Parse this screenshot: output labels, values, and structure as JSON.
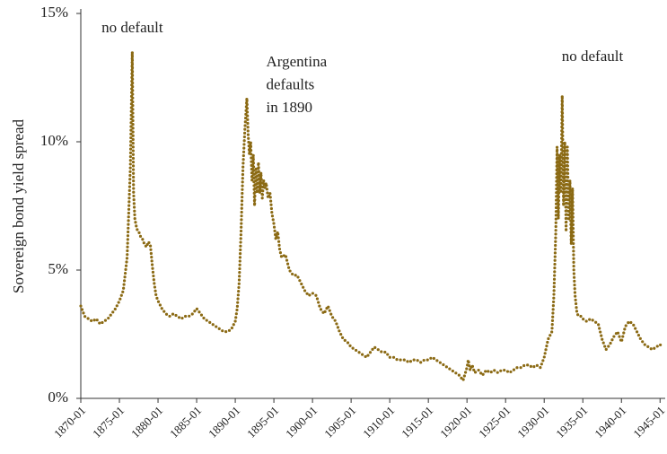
{
  "chart_data": {
    "type": "line",
    "y_label": "Sovereign bond yield spread",
    "annotations": [
      {
        "lines": [
          "no default"
        ],
        "x": "1876-09"
      },
      {
        "lines": [
          "Argentina",
          "defaults",
          "in 1890"
        ],
        "x": "1894-01"
      },
      {
        "lines": [
          "no default"
        ],
        "x": "1936-04"
      }
    ],
    "color": "#8b6a14",
    "ylim": [
      0,
      15
    ],
    "yticks": [
      {
        "value": 0,
        "label": "0%"
      },
      {
        "value": 5,
        "label": "5%"
      },
      {
        "value": 10,
        "label": "10%"
      },
      {
        "value": 15,
        "label": "15%"
      }
    ],
    "xlim": [
      "1870-01",
      "1945-09"
    ],
    "xticks": [
      "1870-01",
      "1875-01",
      "1880-01",
      "1885-01",
      "1890-01",
      "1895-01",
      "1900-01",
      "1905-01",
      "1910-01",
      "1915-01",
      "1920-01",
      "1925-01",
      "1930-01",
      "1935-01",
      "1940-01",
      "1945-01"
    ],
    "x": [
      "1870-01",
      "1870-07",
      "1871-01",
      "1871-07",
      "1872-01",
      "1872-07",
      "1873-01",
      "1873-07",
      "1874-01",
      "1874-07",
      "1875-01",
      "1875-07",
      "1876-01",
      "1876-06",
      "1876-09",
      "1876-11",
      "1877-01",
      "1877-04",
      "1877-07",
      "1877-10",
      "1878-01",
      "1878-04",
      "1878-07",
      "1878-10",
      "1879-01",
      "1879-04",
      "1879-07",
      "1879-10",
      "1880-01",
      "1880-07",
      "1881-01",
      "1881-07",
      "1882-01",
      "1882-07",
      "1883-01",
      "1883-07",
      "1884-01",
      "1884-07",
      "1885-01",
      "1885-07",
      "1886-01",
      "1886-07",
      "1887-01",
      "1887-07",
      "1888-01",
      "1888-07",
      "1889-01",
      "1889-07",
      "1890-01",
      "1890-04",
      "1890-07",
      "1890-10",
      "1891-01",
      "1891-04",
      "1891-07",
      "1891-09",
      "1891-11",
      "1892-01",
      "1892-03",
      "1892-05",
      "1892-07",
      "1892-09",
      "1892-11",
      "1893-01",
      "1893-03",
      "1893-05",
      "1893-07",
      "1893-09",
      "1893-11",
      "1894-01",
      "1894-04",
      "1894-07",
      "1894-10",
      "1895-01",
      "1895-04",
      "1895-07",
      "1895-10",
      "1896-01",
      "1896-07",
      "1897-01",
      "1897-07",
      "1898-01",
      "1898-07",
      "1899-01",
      "1899-07",
      "1900-01",
      "1900-07",
      "1901-01",
      "1901-07",
      "1902-01",
      "1902-07",
      "1903-01",
      "1903-07",
      "1904-01",
      "1904-07",
      "1905-01",
      "1905-07",
      "1906-01",
      "1906-07",
      "1907-01",
      "1907-07",
      "1908-01",
      "1908-07",
      "1909-01",
      "1909-07",
      "1910-01",
      "1910-07",
      "1911-01",
      "1911-07",
      "1912-01",
      "1912-07",
      "1913-01",
      "1913-07",
      "1914-01",
      "1914-07",
      "1915-01",
      "1915-07",
      "1916-01",
      "1916-07",
      "1917-01",
      "1917-07",
      "1918-01",
      "1918-07",
      "1919-01",
      "1919-07",
      "1920-01",
      "1920-03",
      "1920-06",
      "1920-09",
      "1921-01",
      "1921-07",
      "1922-01",
      "1922-07",
      "1923-01",
      "1923-07",
      "1924-01",
      "1924-07",
      "1925-01",
      "1925-07",
      "1926-01",
      "1926-07",
      "1927-01",
      "1927-07",
      "1928-01",
      "1928-07",
      "1929-01",
      "1929-07",
      "1930-01",
      "1930-07",
      "1931-01",
      "1931-04",
      "1931-07",
      "1931-09",
      "1931-11",
      "1932-01",
      "1932-03",
      "1932-05",
      "1932-07",
      "1932-09",
      "1932-11",
      "1933-01",
      "1933-03",
      "1933-05",
      "1933-07",
      "1933-09",
      "1933-11",
      "1934-01",
      "1934-04",
      "1934-07",
      "1934-10",
      "1935-01",
      "1935-07",
      "1936-01",
      "1936-07",
      "1937-01",
      "1937-07",
      "1938-01",
      "1938-07",
      "1939-01",
      "1939-07",
      "1940-01",
      "1940-07",
      "1941-01",
      "1941-07",
      "1942-01",
      "1942-07",
      "1943-01",
      "1943-07",
      "1944-01",
      "1944-07",
      "1945-01",
      "1945-04"
    ],
    "values": [
      3.6,
      3.2,
      3.1,
      3.0,
      3.1,
      2.9,
      3.0,
      3.1,
      3.3,
      3.5,
      3.8,
      4.2,
      5.5,
      9.0,
      13.5,
      8.0,
      7.0,
      6.6,
      6.5,
      6.3,
      6.2,
      6.0,
      5.9,
      6.1,
      6.0,
      5.2,
      4.5,
      4.0,
      3.8,
      3.5,
      3.3,
      3.2,
      3.3,
      3.2,
      3.1,
      3.2,
      3.2,
      3.3,
      3.5,
      3.3,
      3.1,
      3.0,
      2.9,
      2.8,
      2.7,
      2.6,
      2.6,
      2.7,
      3.0,
      3.5,
      4.5,
      6.5,
      9.0,
      10.5,
      11.7,
      10.3,
      9.5,
      10.0,
      8.5,
      9.5,
      7.5,
      9.0,
      8.0,
      9.2,
      8.0,
      8.8,
      7.8,
      8.5,
      8.2,
      8.4,
      7.8,
      8.0,
      7.2,
      6.8,
      6.2,
      6.5,
      5.8,
      5.5,
      5.6,
      5.0,
      4.8,
      4.8,
      4.5,
      4.2,
      4.0,
      4.1,
      4.0,
      3.5,
      3.3,
      3.6,
      3.2,
      3.0,
      2.6,
      2.3,
      2.2,
      2.0,
      1.9,
      1.8,
      1.7,
      1.6,
      1.8,
      2.0,
      1.9,
      1.8,
      1.8,
      1.6,
      1.6,
      1.5,
      1.5,
      1.5,
      1.4,
      1.5,
      1.5,
      1.4,
      1.5,
      1.5,
      1.6,
      1.5,
      1.4,
      1.3,
      1.2,
      1.1,
      1.0,
      0.9,
      0.7,
      1.2,
      1.5,
      1.1,
      1.3,
      1.0,
      1.1,
      0.9,
      1.1,
      1.0,
      1.1,
      1.0,
      1.1,
      1.1,
      1.0,
      1.1,
      1.2,
      1.2,
      1.3,
      1.3,
      1.2,
      1.3,
      1.2,
      1.6,
      2.3,
      2.6,
      4.0,
      6.5,
      9.8,
      7.0,
      9.5,
      8.0,
      11.8,
      7.5,
      10.0,
      6.5,
      9.8,
      7.0,
      8.5,
      6.0,
      8.2,
      5.0,
      4.0,
      3.3,
      3.2,
      3.2,
      3.1,
      3.0,
      3.1,
      3.0,
      2.9,
      2.3,
      1.9,
      2.1,
      2.4,
      2.6,
      2.2,
      2.8,
      3.0,
      2.9,
      2.6,
      2.3,
      2.1,
      2.0,
      1.9,
      2.0,
      2.1,
      2.0
    ]
  }
}
